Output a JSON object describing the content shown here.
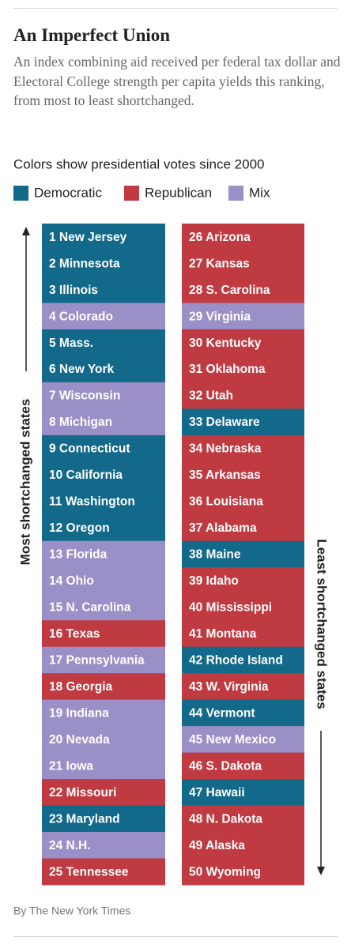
{
  "header": {
    "title": "An Imperfect Union",
    "description": "An index combining aid received per federal tax dollar and Electoral College strength per capita yields this ranking, from most to least shortchanged."
  },
  "legend": {
    "title": "Colors show presidential votes since 2000",
    "items": [
      {
        "name": "Democratic",
        "color": "#13698a"
      },
      {
        "name": "Republican",
        "color": "#c03a42"
      },
      {
        "name": "Mix",
        "color": "#9a8fc6"
      }
    ]
  },
  "axis": {
    "left": "Most shortchanged states",
    "right": "Least shortchanged states"
  },
  "states": [
    {
      "label": "1 New Jersey",
      "vote": "Democratic"
    },
    {
      "label": "2 Minnesota",
      "vote": "Democratic"
    },
    {
      "label": "3 Illinois",
      "vote": "Democratic"
    },
    {
      "label": "4 Colorado",
      "vote": "Mix"
    },
    {
      "label": "5 Mass.",
      "vote": "Democratic"
    },
    {
      "label": "6 New York",
      "vote": "Democratic"
    },
    {
      "label": "7 Wisconsin",
      "vote": "Mix"
    },
    {
      "label": "8 Michigan",
      "vote": "Mix"
    },
    {
      "label": "9 Connecticut",
      "vote": "Democratic"
    },
    {
      "label": "10 California",
      "vote": "Democratic"
    },
    {
      "label": "11 Washington",
      "vote": "Democratic"
    },
    {
      "label": "12 Oregon",
      "vote": "Democratic"
    },
    {
      "label": "13 Florida",
      "vote": "Mix"
    },
    {
      "label": "14 Ohio",
      "vote": "Mix"
    },
    {
      "label": "15 N. Carolina",
      "vote": "Mix"
    },
    {
      "label": "16 Texas",
      "vote": "Republican"
    },
    {
      "label": "17 Pennsylvania",
      "vote": "Mix"
    },
    {
      "label": "18 Georgia",
      "vote": "Republican"
    },
    {
      "label": "19 Indiana",
      "vote": "Mix"
    },
    {
      "label": "20 Nevada",
      "vote": "Mix"
    },
    {
      "label": "21 Iowa",
      "vote": "Mix"
    },
    {
      "label": "22 Missouri",
      "vote": "Republican"
    },
    {
      "label": "23 Maryland",
      "vote": "Democratic"
    },
    {
      "label": "24 N.H.",
      "vote": "Mix"
    },
    {
      "label": "25 Tennessee",
      "vote": "Republican"
    },
    {
      "label": "26 Arizona",
      "vote": "Republican"
    },
    {
      "label": "27 Kansas",
      "vote": "Republican"
    },
    {
      "label": "28 S. Carolina",
      "vote": "Republican"
    },
    {
      "label": "29 Virginia",
      "vote": "Mix"
    },
    {
      "label": "30 Kentucky",
      "vote": "Republican"
    },
    {
      "label": "31 Oklahoma",
      "vote": "Republican"
    },
    {
      "label": "32 Utah",
      "vote": "Republican"
    },
    {
      "label": "33 Delaware",
      "vote": "Democratic"
    },
    {
      "label": "34 Nebraska",
      "vote": "Republican"
    },
    {
      "label": "35 Arkansas",
      "vote": "Republican"
    },
    {
      "label": "36 Louisiana",
      "vote": "Republican"
    },
    {
      "label": "37 Alabama",
      "vote": "Republican"
    },
    {
      "label": "38 Maine",
      "vote": "Democratic"
    },
    {
      "label": "39 Idaho",
      "vote": "Republican"
    },
    {
      "label": "40 Mississippi",
      "vote": "Republican"
    },
    {
      "label": "41 Montana",
      "vote": "Republican"
    },
    {
      "label": "42 Rhode Island",
      "vote": "Democratic"
    },
    {
      "label": "43 W. Virginia",
      "vote": "Republican"
    },
    {
      "label": "44 Vermont",
      "vote": "Democratic"
    },
    {
      "label": "45 New Mexico",
      "vote": "Mix"
    },
    {
      "label": "46 S. Dakota",
      "vote": "Republican"
    },
    {
      "label": "47 Hawaii",
      "vote": "Democratic"
    },
    {
      "label": "48 N. Dakota",
      "vote": "Republican"
    },
    {
      "label": "49 Alaska",
      "vote": "Republican"
    },
    {
      "label": "50 Wyoming",
      "vote": "Republican"
    }
  ],
  "footer": {
    "credit": "By The New York Times"
  }
}
